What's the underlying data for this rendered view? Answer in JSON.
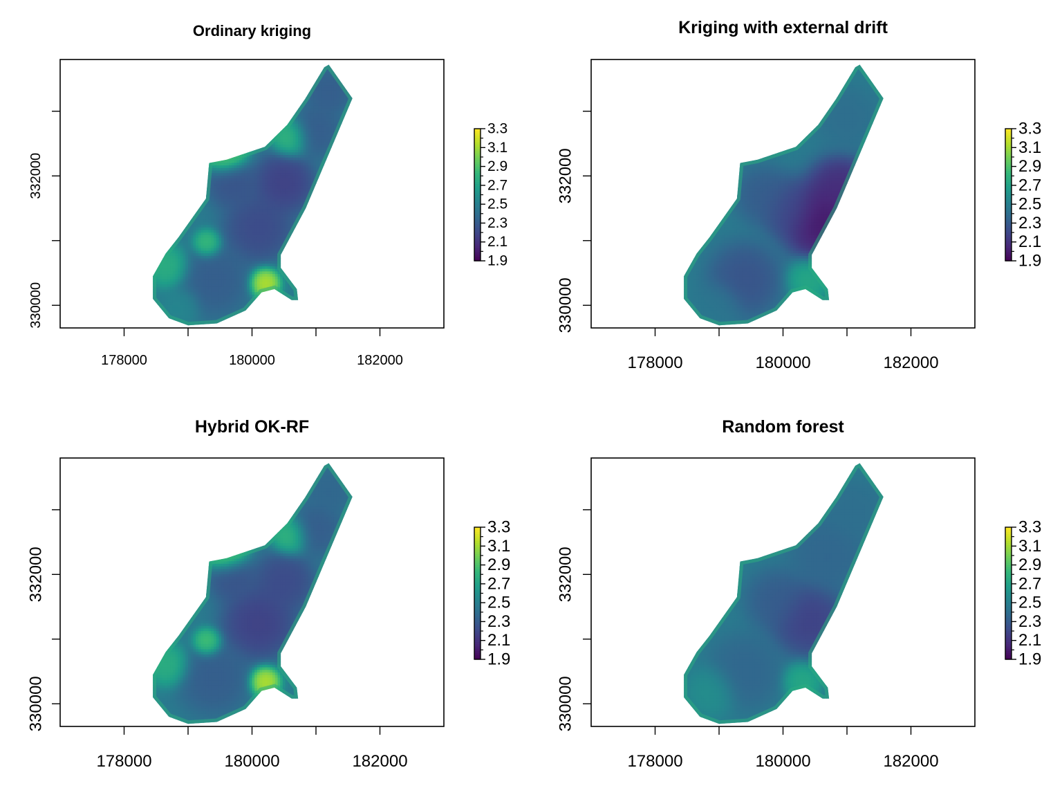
{
  "chart_data": [
    {
      "type": "heatmap",
      "title": "Ordinary kriging",
      "x_ticks": [
        "178000",
        "180000",
        "182000"
      ],
      "y_ticks": [
        "330000",
        "332000"
      ],
      "xlim": [
        177000,
        183000
      ],
      "ylim": [
        329650,
        333800
      ],
      "legend": {
        "position": "right",
        "ticks": [
          "3.3",
          "3.1",
          "2.9",
          "2.7",
          "2.5",
          "2.3",
          "2.1",
          "1.9"
        ],
        "min": 1.9,
        "max": 3.3
      },
      "blobs": [
        {
          "x": 179400,
          "y": 330400,
          "r": 380,
          "v": 2.3
        },
        {
          "x": 180100,
          "y": 331200,
          "r": 360,
          "v": 2.2
        },
        {
          "x": 179700,
          "y": 331900,
          "r": 280,
          "v": 2.25
        },
        {
          "x": 180500,
          "y": 331900,
          "r": 320,
          "v": 2.15
        },
        {
          "x": 181000,
          "y": 332700,
          "r": 280,
          "v": 2.3
        },
        {
          "x": 181200,
          "y": 333300,
          "r": 250,
          "v": 2.3
        },
        {
          "x": 179600,
          "y": 332350,
          "r": 220,
          "v": 3.1
        },
        {
          "x": 180200,
          "y": 330350,
          "r": 160,
          "v": 3.2
        },
        {
          "x": 178900,
          "y": 330000,
          "r": 200,
          "v": 2.55
        },
        {
          "x": 178700,
          "y": 330600,
          "r": 220,
          "v": 2.8
        },
        {
          "x": 179300,
          "y": 330950,
          "r": 150,
          "v": 2.9
        },
        {
          "x": 180600,
          "y": 332600,
          "r": 200,
          "v": 2.85
        }
      ]
    },
    {
      "type": "heatmap",
      "title": "Kriging with external drift",
      "x_ticks": [
        "178000",
        "180000",
        "182000"
      ],
      "y_ticks": [
        "330000",
        "332000"
      ],
      "xlim": [
        177000,
        183000
      ],
      "ylim": [
        329650,
        333800
      ],
      "legend": {
        "position": "right",
        "ticks": [
          "3.3",
          "3.1",
          "2.9",
          "2.7",
          "2.5",
          "2.3",
          "2.1",
          "1.9"
        ],
        "min": 1.9,
        "max": 3.3
      },
      "blobs": [
        {
          "x": 180600,
          "y": 331300,
          "r": 400,
          "v": 1.95
        },
        {
          "x": 180900,
          "y": 331800,
          "r": 340,
          "v": 2.05
        },
        {
          "x": 180100,
          "y": 331500,
          "r": 300,
          "v": 2.2
        },
        {
          "x": 179400,
          "y": 330400,
          "r": 380,
          "v": 2.25
        },
        {
          "x": 179700,
          "y": 331700,
          "r": 300,
          "v": 2.3
        },
        {
          "x": 181000,
          "y": 332900,
          "r": 320,
          "v": 2.4
        },
        {
          "x": 179000,
          "y": 330000,
          "r": 260,
          "v": 2.45
        },
        {
          "x": 180400,
          "y": 330400,
          "r": 220,
          "v": 2.75
        }
      ]
    },
    {
      "type": "heatmap",
      "title": "Hybrid OK-RF",
      "x_ticks": [
        "178000",
        "180000",
        "182000"
      ],
      "y_ticks": [
        "330000",
        "332000"
      ],
      "xlim": [
        177000,
        183000
      ],
      "ylim": [
        329650,
        333800
      ],
      "legend": {
        "position": "right",
        "ticks": [
          "3.3",
          "3.1",
          "2.9",
          "2.7",
          "2.5",
          "2.3",
          "2.1",
          "1.9"
        ],
        "min": 1.9,
        "max": 3.3
      },
      "blobs": [
        {
          "x": 179400,
          "y": 330400,
          "r": 380,
          "v": 2.3
        },
        {
          "x": 180100,
          "y": 331250,
          "r": 380,
          "v": 2.15
        },
        {
          "x": 179700,
          "y": 331950,
          "r": 260,
          "v": 2.25
        },
        {
          "x": 180500,
          "y": 331900,
          "r": 320,
          "v": 2.2
        },
        {
          "x": 181000,
          "y": 332700,
          "r": 280,
          "v": 2.3
        },
        {
          "x": 181200,
          "y": 333300,
          "r": 250,
          "v": 2.35
        },
        {
          "x": 179600,
          "y": 332350,
          "r": 220,
          "v": 3.05
        },
        {
          "x": 180200,
          "y": 330350,
          "r": 160,
          "v": 3.2
        },
        {
          "x": 178700,
          "y": 330600,
          "r": 220,
          "v": 2.8
        },
        {
          "x": 179300,
          "y": 330950,
          "r": 150,
          "v": 2.95
        },
        {
          "x": 180600,
          "y": 332600,
          "r": 200,
          "v": 2.85
        }
      ]
    },
    {
      "type": "heatmap",
      "title": "Random forest",
      "x_ticks": [
        "178000",
        "180000",
        "182000"
      ],
      "y_ticks": [
        "330000",
        "332000"
      ],
      "xlim": [
        177000,
        183000
      ],
      "ylim": [
        329650,
        333800
      ],
      "legend": {
        "position": "right",
        "ticks": [
          "3.3",
          "3.1",
          "2.9",
          "2.7",
          "2.5",
          "2.3",
          "2.1",
          "1.9"
        ],
        "min": 1.9,
        "max": 3.3
      },
      "blobs": [
        {
          "x": 180400,
          "y": 331300,
          "r": 380,
          "v": 2.15
        },
        {
          "x": 179900,
          "y": 331600,
          "r": 320,
          "v": 2.3
        },
        {
          "x": 179400,
          "y": 330500,
          "r": 380,
          "v": 2.35
        },
        {
          "x": 180700,
          "y": 332300,
          "r": 400,
          "v": 2.35
        },
        {
          "x": 181100,
          "y": 333000,
          "r": 320,
          "v": 2.4
        },
        {
          "x": 178900,
          "y": 330200,
          "r": 260,
          "v": 2.6
        },
        {
          "x": 180300,
          "y": 330350,
          "r": 200,
          "v": 2.75
        }
      ]
    }
  ],
  "colors": {
    "viridis": [
      "#440154",
      "#482878",
      "#3e4989",
      "#31688e",
      "#26828e",
      "#1f9e89",
      "#35b779",
      "#6ece58",
      "#b5de2b",
      "#fde725"
    ],
    "frame": "#000000",
    "background": "#ffffff"
  }
}
